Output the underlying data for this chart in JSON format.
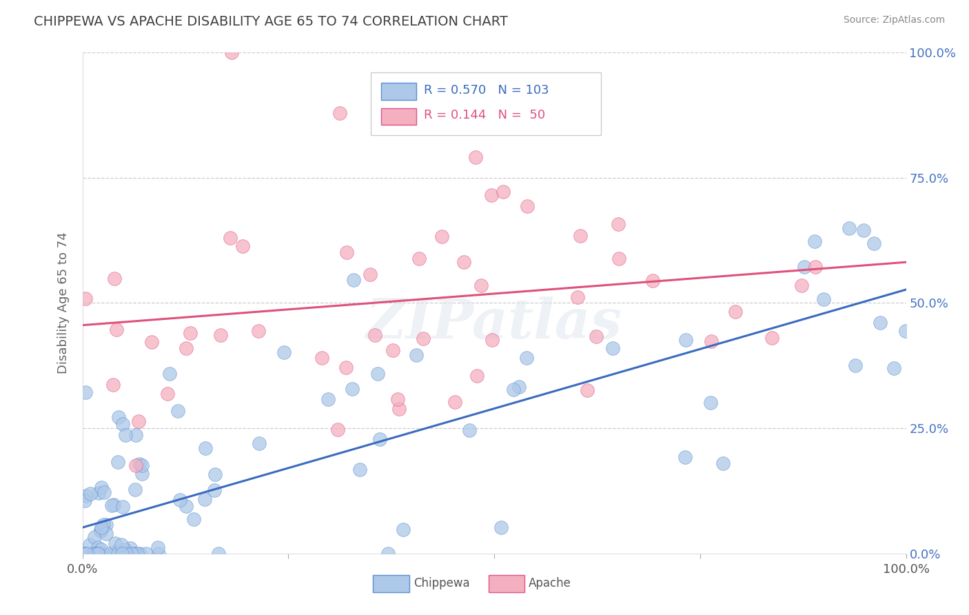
{
  "title": "CHIPPEWA VS APACHE DISABILITY AGE 65 TO 74 CORRELATION CHART",
  "source": "Source: ZipAtlas.com",
  "ylabel": "Disability Age 65 to 74",
  "xlim": [
    0.0,
    1.0
  ],
  "ylim": [
    0.0,
    1.0
  ],
  "xticks": [
    0.0,
    0.25,
    0.5,
    0.75,
    1.0
  ],
  "yticks": [
    0.0,
    0.25,
    0.5,
    0.75,
    1.0
  ],
  "xticklabels": [
    "0.0%",
    "",
    "",
    "",
    "100.0%"
  ],
  "yticklabels_right": [
    "0.0%",
    "25.0%",
    "50.0%",
    "75.0%",
    "100.0%"
  ],
  "chippewa_color": "#adc8e8",
  "apache_color": "#f4afc0",
  "chippewa_edge_color": "#5b8fd4",
  "apache_edge_color": "#e05585",
  "chippewa_line_color": "#3a6bbf",
  "apache_line_color": "#e0507a",
  "R_chippewa": 0.57,
  "N_chippewa": 103,
  "R_apache": 0.144,
  "N_apache": 50,
  "chippewa_label": "Chippewa",
  "apache_label": "Apache",
  "background_color": "#ffffff",
  "grid_color": "#cccccc",
  "title_color": "#404040",
  "axis_label_color": "#4472c4",
  "watermark": "ZIPatlas",
  "seed": 7
}
